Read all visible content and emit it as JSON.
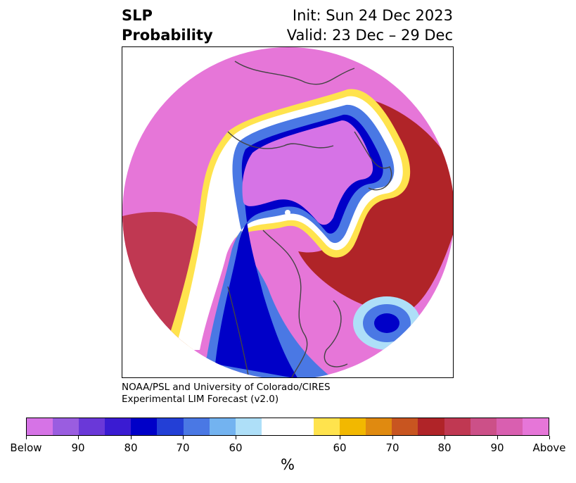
{
  "title": {
    "left_line1": "SLP",
    "left_line2": "Probability",
    "right_line1": "Init: Sun 24 Dec 2023",
    "right_line2": "Valid: 23 Dec – 29 Dec"
  },
  "credit": {
    "line1": "NOAA/PSL and University of Colorado/CIRES",
    "line2": "Experimental LIM Forecast (v2.0)"
  },
  "colorbar": {
    "colors": [
      "#d673e6",
      "#9a5de0",
      "#6a38d8",
      "#3a1bd2",
      "#0000c8",
      "#233fd6",
      "#4a78e4",
      "#73b3f0",
      "#aedff8",
      "#ffffff",
      "#ffffff",
      "#ffe34d",
      "#f2b800",
      "#e08a10",
      "#c85520",
      "#b02428",
      "#c03852",
      "#cc5088",
      "#d95fb0",
      "#e676d8"
    ],
    "tick_labels": [
      "Below",
      "90",
      "80",
      "70",
      "60",
      "60",
      "70",
      "80",
      "90",
      "Above"
    ],
    "unit_label": "%"
  },
  "map_colors": {
    "above_far": "#e676d8",
    "above_90": "#d95fb0",
    "above_80": "#c03852",
    "above_70": "#b02428",
    "above_60": "#e08a10",
    "above_50": "#ffe34d",
    "neutral": "#ffffff",
    "below_50": "#aedff8",
    "below_60": "#4a78e4",
    "below_70": "#0000c8",
    "below_80": "#6a38d8",
    "below_far": "#d673e6",
    "coast": "#444444"
  }
}
